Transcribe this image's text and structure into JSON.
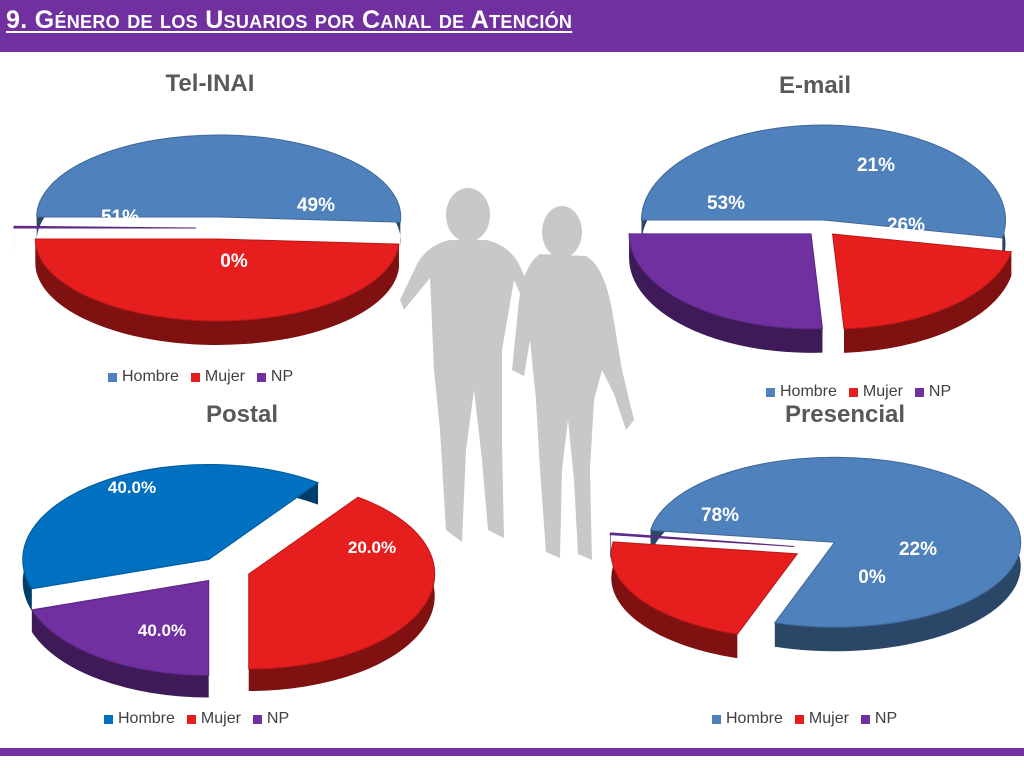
{
  "header": {
    "title": "9. Género de los Usuarios por Canal de Atención"
  },
  "colors": {
    "header_bg": "#7030a0",
    "hombre": "#4f81bd",
    "hombre_postal": "#0070c0",
    "mujer": "#e61e1e",
    "np": "#7030a0"
  },
  "chart_data": [
    {
      "type": "pie",
      "title": "Tel-INAI",
      "categories": [
        "Hombre",
        "Mujer",
        "NP"
      ],
      "values": [
        51,
        49,
        0
      ],
      "data_labels": [
        "51%",
        "49%",
        "0%"
      ],
      "legend": [
        "Hombre",
        "Mujer",
        "NP"
      ],
      "legend_position": "bottom"
    },
    {
      "type": "pie",
      "title": "E-mail",
      "categories": [
        "Hombre",
        "Mujer",
        "NP"
      ],
      "values": [
        53,
        21,
        26
      ],
      "data_labels": [
        "53%",
        "21%",
        "26%"
      ],
      "legend": [
        "Hombre",
        "Mujer",
        "NP"
      ],
      "legend_position": "bottom"
    },
    {
      "type": "pie",
      "title": "Postal",
      "categories": [
        "Hombre",
        "Mujer",
        "NP"
      ],
      "values": [
        40.0,
        40.0,
        20.0
      ],
      "data_labels": [
        "40.0%",
        "40.0%",
        "20.0%"
      ],
      "legend": [
        "Hombre",
        "Mujer",
        "NP"
      ],
      "legend_position": "bottom"
    },
    {
      "type": "pie",
      "title": "Presencial",
      "categories": [
        "Hombre",
        "Mujer",
        "NP"
      ],
      "values": [
        78,
        22,
        0
      ],
      "data_labels": [
        "78%",
        "22%",
        "0%"
      ],
      "legend": [
        "Hombre",
        "Mujer",
        "NP"
      ],
      "legend_position": "bottom"
    }
  ]
}
